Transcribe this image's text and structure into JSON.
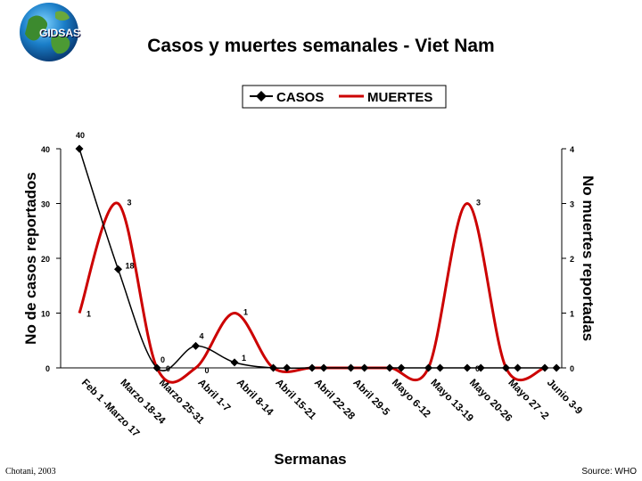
{
  "logo": {
    "text": "GIDSAS"
  },
  "footer": {
    "credit": "Chotani, 2003",
    "source": "Source: WHO"
  },
  "chart_data": {
    "type": "line",
    "title": "Casos y muertes semanales - Viet Nam",
    "xlabel": "Sermanas",
    "ylabel": "No de casos reportados",
    "y2label": "No muertes reportadas",
    "categories": [
      "Feb 1 -Marzo 17",
      "Marzo 18-24",
      "Marzo 25-31",
      "Abril 1-7",
      "Abril 8-14",
      "Abril 15-21",
      "Abril 22-28",
      "Abril 29-5",
      "Mayo 6-12",
      "Mayo 13-19",
      "Mayo 20-26",
      "Mayo 27 -2",
      "Junio 3-9"
    ],
    "ylim": [
      0,
      40
    ],
    "y2lim": [
      0,
      4
    ],
    "yticks": [
      "0",
      "10",
      "20",
      "30",
      "40"
    ],
    "y2ticks": [
      "0",
      "1",
      "2",
      "3",
      "4"
    ],
    "legend_position": "top",
    "series": [
      {
        "name": "CASOS",
        "axis": "left",
        "color": "#000000",
        "marker": "diamond",
        "x": [
          0,
          1,
          2,
          3,
          4,
          5,
          6,
          7,
          8,
          9,
          10,
          11,
          12
        ],
        "values": [
          40,
          18,
          0,
          4,
          1,
          0,
          0,
          0,
          0,
          0,
          0,
          0,
          0
        ],
        "labels": [
          "40",
          "18",
          "0",
          "4",
          "1",
          "",
          "",
          "",
          "",
          "",
          "0",
          "",
          ""
        ]
      },
      {
        "name": "MUERTES",
        "axis": "right",
        "color": "#cc0000",
        "marker": "none",
        "x": [
          0,
          1,
          2,
          3,
          4,
          5,
          6,
          7,
          8,
          9,
          10,
          11,
          12
        ],
        "values": [
          1,
          3,
          0,
          0,
          1,
          0,
          0,
          0,
          0,
          0,
          3,
          0,
          0
        ],
        "labels": [
          "1",
          "3",
          "0",
          "0",
          "1",
          "",
          "",
          "",
          "",
          "",
          "3",
          "",
          ""
        ]
      }
    ],
    "extra_markers": {
      "series": "CASOS",
      "x": [
        5.35,
        6.3,
        7.35,
        8.3,
        9.3,
        10.35,
        11.3,
        12.3
      ],
      "values": [
        0,
        0,
        0,
        0,
        0,
        0,
        0,
        0
      ]
    }
  }
}
